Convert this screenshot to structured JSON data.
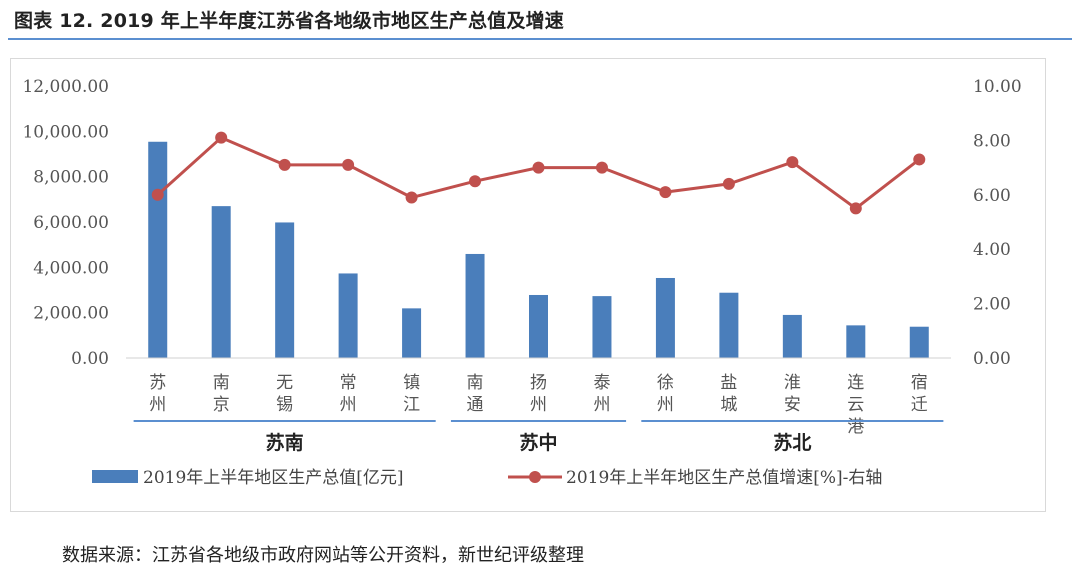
{
  "title": "图表 12. 2019 年上半年度江苏省各地级市地区生产总值及增速",
  "source": "数据来源：江苏省各地级市政府网站等公开资料，新世纪评级整理",
  "chart_data": {
    "type": "bar",
    "categories": [
      "苏州",
      "南京",
      "无锡",
      "常州",
      "镇江",
      "南通",
      "扬州",
      "泰州",
      "徐州",
      "盐城",
      "淮安",
      "连云港",
      "宿迁"
    ],
    "series": [
      {
        "name": "2019年上半年地区生产总值[亿元]",
        "type": "bar",
        "axis": "left",
        "color": "#4a7ebb",
        "values": [
          9540,
          6700,
          5980,
          3730,
          2190,
          4590,
          2780,
          2730,
          3530,
          2880,
          1900,
          1440,
          1380
        ]
      },
      {
        "name": "2019年上半年地区生产总值增速[%]-右轴",
        "type": "line",
        "axis": "right",
        "color": "#c0504d",
        "values": [
          6.0,
          8.1,
          7.1,
          7.1,
          5.9,
          6.5,
          7.0,
          7.0,
          6.1,
          6.4,
          7.2,
          5.5,
          7.3
        ]
      }
    ],
    "y_left": {
      "min": 0,
      "max": 12000,
      "step": 2000,
      "ticks": [
        "0.00",
        "2,000.00",
        "4,000.00",
        "6,000.00",
        "8,000.00",
        "10,000.00",
        "12,000.00"
      ]
    },
    "y_right": {
      "min": 0,
      "max": 10,
      "step": 2,
      "ticks": [
        "0.00",
        "2.00",
        "4.00",
        "6.00",
        "8.00",
        "10.00"
      ]
    },
    "groups": [
      {
        "label": "苏南",
        "from": 0,
        "to": 4
      },
      {
        "label": "苏中",
        "from": 5,
        "to": 7
      },
      {
        "label": "苏北",
        "from": 8,
        "to": 12
      }
    ],
    "grid": false,
    "legend_position": "bottom"
  }
}
